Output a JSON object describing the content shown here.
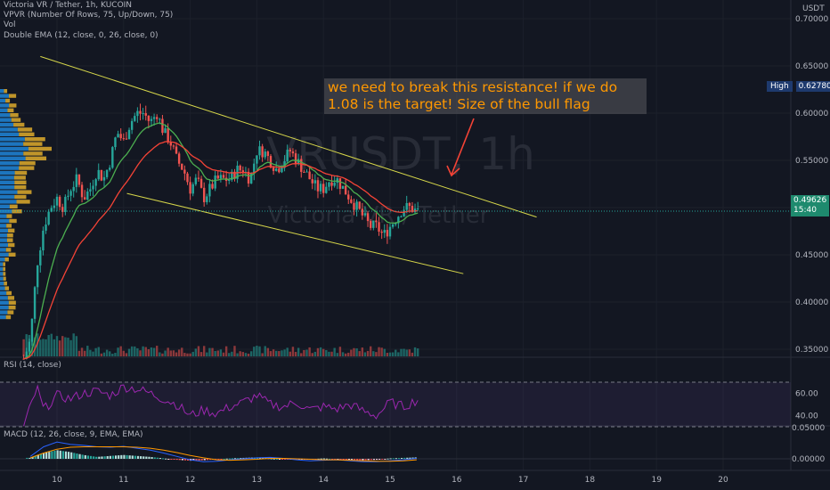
{
  "legend": {
    "symbol": "Victoria VR / Tether, 1h, KUCOIN",
    "vpvr": "VPVR (Number Of Rows, 75, Up/Down, 75)",
    "vol": "Vol",
    "ema": "Double EMA (12, close, 0, 26, close, 0)"
  },
  "watermark": {
    "ticker": "VRUSDT, 1h",
    "name": "Victoria VR / Tether"
  },
  "annotation": {
    "line1": "we need to break this resistance! if we do",
    "line2": "1.08 is the target! Size of the bull flag"
  },
  "price_axis": {
    "currency": "USDT",
    "labels": [
      "0.70000",
      "0.65000",
      "0.60000",
      "0.55000",
      "0.45000",
      "0.40000",
      "0.35000"
    ],
    "high_label": "High",
    "high_value": "0.62780",
    "last_price": "0.49626",
    "countdown": "15:40"
  },
  "rsi": {
    "label": "RSI (14, close)",
    "axis_labels": [
      "60.00",
      "40.00"
    ]
  },
  "macd": {
    "label": "MACD (12, 26, close, 9, EMA, EMA)",
    "axis_labels": [
      "0.05000",
      "0.00000"
    ]
  },
  "time_axis": [
    "10",
    "11",
    "12",
    "13",
    "14",
    "15",
    "16",
    "17",
    "18",
    "19",
    "20"
  ],
  "colors": {
    "up": "#26a69a",
    "down": "#ef5350",
    "ema_fast": "#4caf50",
    "ema_slow": "#f44336",
    "channel": "#d6d64a",
    "arrow": "#f44336",
    "rsi": "#9c27b0",
    "macd": "#2962ff",
    "signal": "#ff9800",
    "last_price": "#1e8a6e",
    "high": "#1e3a6e"
  },
  "chart_data": [
    {
      "type": "candlestick",
      "title": "Victoria VR / Tether, 1h, KUCOIN",
      "x_unit": "day of month",
      "ylim": [
        0.31,
        0.72
      ],
      "x": [
        9.5,
        9.6,
        9.7,
        9.8,
        9.9,
        10.0,
        10.1,
        10.2,
        10.3,
        10.4,
        10.5,
        10.6,
        10.7,
        10.8,
        10.9,
        11.0,
        11.1,
        11.2,
        11.3,
        11.4,
        11.5,
        11.6,
        11.7,
        11.8,
        11.9,
        12.0,
        12.1,
        12.2,
        12.3,
        12.4,
        12.5,
        12.6,
        12.7,
        12.8,
        12.9,
        13.0,
        13.1,
        13.2,
        13.3,
        13.4,
        13.5,
        13.6,
        13.7,
        13.8,
        13.9,
        14.0,
        14.1,
        14.2,
        14.3,
        14.4,
        14.5,
        14.6,
        14.7,
        14.8,
        14.9,
        15.0,
        15.1,
        15.2,
        15.3,
        15.4
      ],
      "close": [
        0.34,
        0.36,
        0.44,
        0.48,
        0.5,
        0.51,
        0.5,
        0.52,
        0.53,
        0.51,
        0.52,
        0.54,
        0.53,
        0.55,
        0.58,
        0.57,
        0.59,
        0.6,
        0.6,
        0.59,
        0.6,
        0.58,
        0.57,
        0.55,
        0.54,
        0.52,
        0.53,
        0.51,
        0.52,
        0.53,
        0.53,
        0.53,
        0.54,
        0.54,
        0.53,
        0.56,
        0.56,
        0.55,
        0.54,
        0.55,
        0.56,
        0.55,
        0.54,
        0.53,
        0.52,
        0.52,
        0.53,
        0.53,
        0.52,
        0.51,
        0.5,
        0.49,
        0.48,
        0.48,
        0.47,
        0.48,
        0.49,
        0.5,
        0.5,
        0.496
      ],
      "high_marker": 0.6278,
      "last_price": 0.49626,
      "channel": {
        "upper": [
          [
            9.75,
            0.66
          ],
          [
            17.2,
            0.49
          ]
        ],
        "lower": [
          [
            11.05,
            0.515
          ],
          [
            16.1,
            0.43
          ]
        ]
      }
    },
    {
      "type": "line",
      "title": "RSI (14, close)",
      "x": [
        9.5,
        9.7,
        9.8,
        10.0,
        10.2,
        10.4,
        10.6,
        10.8,
        11.0,
        11.2,
        11.4,
        11.6,
        11.8,
        12.0,
        12.2,
        12.4,
        12.6,
        12.8,
        13.0,
        13.2,
        13.4,
        13.6,
        13.8,
        14.0,
        14.2,
        14.4,
        14.6,
        14.8,
        15.0,
        15.2,
        15.4
      ],
      "values": [
        30,
        65,
        45,
        58,
        55,
        60,
        62,
        58,
        66,
        64,
        60,
        55,
        50,
        40,
        45,
        42,
        48,
        52,
        58,
        50,
        48,
        52,
        45,
        48,
        46,
        50,
        44,
        40,
        52,
        48,
        54
      ],
      "reference_lines": [
        60,
        40
      ]
    },
    {
      "type": "histogram",
      "title": "MACD (12, 26, close, 9, EMA, EMA)",
      "x": [
        9.6,
        9.8,
        10.0,
        10.2,
        10.4,
        10.6,
        10.8,
        11.0,
        11.2,
        11.4,
        11.6,
        11.8,
        12.0,
        12.2,
        12.4,
        12.6,
        12.8,
        13.0,
        13.2,
        13.4,
        13.6,
        13.8,
        14.0,
        14.2,
        14.4,
        14.6,
        14.8,
        15.0,
        15.2,
        15.4
      ],
      "histogram": [
        0.002,
        0.012,
        0.018,
        0.014,
        0.008,
        0.004,
        0.006,
        0.008,
        0.006,
        0.004,
        0.001,
        -0.002,
        -0.004,
        -0.003,
        -0.001,
        0.001,
        0.002,
        0.003,
        0.001,
        -0.001,
        -0.002,
        -0.001,
        0.001,
        -0.001,
        -0.002,
        -0.003,
        -0.002,
        0.001,
        0.002,
        0.003
      ],
      "macd": [
        0.005,
        0.025,
        0.035,
        0.03,
        0.028,
        0.025,
        0.024,
        0.026,
        0.022,
        0.018,
        0.012,
        0.005,
        -0.002,
        -0.006,
        -0.005,
        -0.002,
        0.0,
        0.002,
        0.003,
        0.001,
        -0.002,
        -0.004,
        -0.003,
        -0.002,
        -0.004,
        -0.006,
        -0.006,
        -0.004,
        -0.002,
        0.001
      ],
      "signal": [
        0.002,
        0.012,
        0.02,
        0.024,
        0.025,
        0.025,
        0.025,
        0.025,
        0.024,
        0.022,
        0.018,
        0.013,
        0.007,
        0.002,
        -0.002,
        -0.003,
        -0.002,
        -0.001,
        0.001,
        0.001,
        0.0,
        -0.001,
        -0.002,
        -0.002,
        -0.003,
        -0.004,
        -0.005,
        -0.005,
        -0.004,
        -0.002
      ]
    }
  ]
}
